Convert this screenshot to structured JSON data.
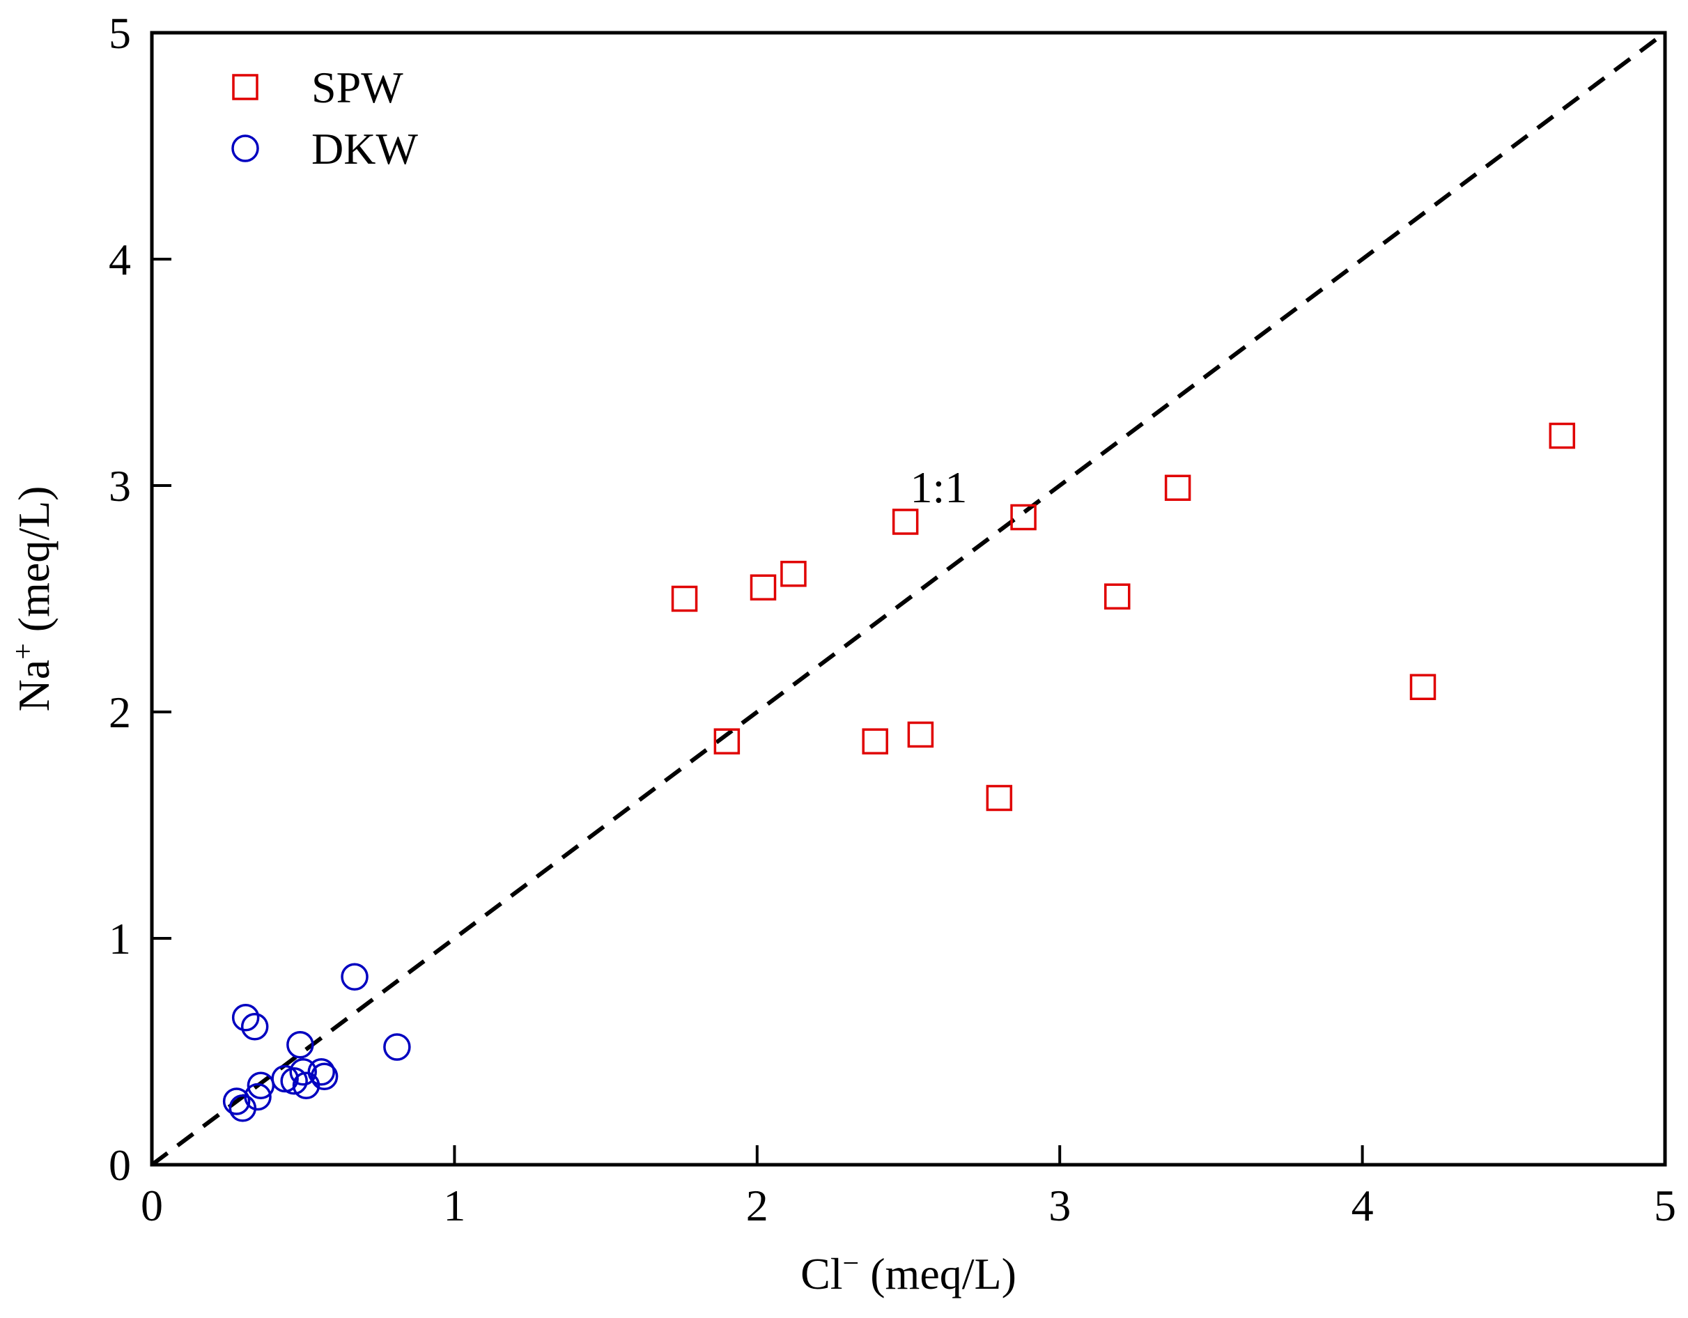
{
  "chart_data": {
    "type": "scatter",
    "title": "",
    "xlabel": {
      "base": "Cl",
      "sup": "−",
      "unit": " (meq/L)"
    },
    "ylabel": {
      "base": "Na",
      "sup": "+",
      "unit": " (meq/L)"
    },
    "xlim": [
      0,
      5
    ],
    "ylim": [
      0,
      5
    ],
    "xticks": [
      0,
      1,
      2,
      3,
      4,
      5
    ],
    "yticks": [
      0,
      1,
      2,
      3,
      4,
      5
    ],
    "grid": false,
    "legend_position": "top-left",
    "reference_line": {
      "label": "1:1",
      "from": [
        0,
        0
      ],
      "to": [
        5,
        5
      ],
      "style": "dashed",
      "label_at": [
        2.6,
        3.0
      ]
    },
    "series": [
      {
        "name": "SPW",
        "marker": "square",
        "color": "#e00000",
        "points": [
          [
            1.76,
            2.5
          ],
          [
            1.9,
            1.87
          ],
          [
            2.02,
            2.55
          ],
          [
            2.12,
            2.61
          ],
          [
            2.39,
            1.87
          ],
          [
            2.49,
            2.84
          ],
          [
            2.54,
            1.9
          ],
          [
            2.8,
            1.62
          ],
          [
            2.88,
            2.86
          ],
          [
            3.19,
            2.51
          ],
          [
            3.39,
            2.99
          ],
          [
            4.2,
            2.11
          ],
          [
            4.66,
            3.22
          ]
        ]
      },
      {
        "name": "DKW",
        "marker": "circle",
        "color": "#0000c0",
        "points": [
          [
            0.28,
            0.28
          ],
          [
            0.3,
            0.25
          ],
          [
            0.31,
            0.65
          ],
          [
            0.34,
            0.61
          ],
          [
            0.35,
            0.3
          ],
          [
            0.36,
            0.35
          ],
          [
            0.44,
            0.38
          ],
          [
            0.47,
            0.37
          ],
          [
            0.49,
            0.53
          ],
          [
            0.5,
            0.41
          ],
          [
            0.51,
            0.35
          ],
          [
            0.56,
            0.41
          ],
          [
            0.57,
            0.39
          ],
          [
            0.67,
            0.83
          ],
          [
            0.81,
            0.52
          ]
        ]
      }
    ]
  }
}
